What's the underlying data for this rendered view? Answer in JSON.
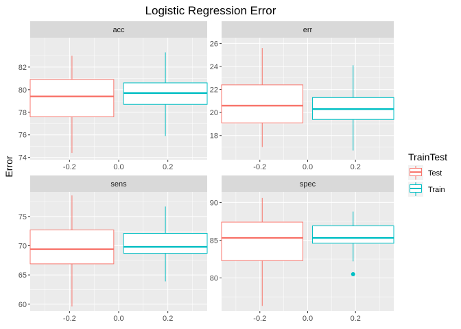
{
  "chart_data": {
    "type": "boxplot",
    "title": "Logistic Regression Error",
    "ylabel": "Error",
    "facet_layout": "2x2",
    "legend": {
      "title": "TrainTest",
      "position": "right",
      "entries": [
        {
          "name": "Test",
          "color": "#F8766D"
        },
        {
          "name": "Train",
          "color": "#00BFC4"
        }
      ]
    },
    "grid": true,
    "x_ticks": [
      "-0.2",
      "0.0",
      "0.2"
    ],
    "x_range": [
      -0.36,
      0.36
    ],
    "panels": [
      {
        "strip": "acc",
        "ylim": [
          73.8,
          84.6
        ],
        "y_ticks": [
          74,
          76,
          78,
          80,
          82
        ],
        "boxes": [
          {
            "group": "Test",
            "x": -0.19,
            "min": 74.4,
            "q1": 77.6,
            "median": 79.4,
            "q3": 80.9,
            "max": 83.0,
            "outliers": []
          },
          {
            "group": "Train",
            "x": 0.19,
            "min": 75.9,
            "q1": 78.7,
            "median": 79.7,
            "q3": 80.6,
            "max": 83.3,
            "outliers": []
          }
        ]
      },
      {
        "strip": "err",
        "ylim": [
          15.9,
          26.5
        ],
        "y_ticks": [
          18,
          20,
          22,
          24,
          26
        ],
        "boxes": [
          {
            "group": "Test",
            "x": -0.19,
            "min": 17.0,
            "q1": 19.1,
            "median": 20.6,
            "q3": 22.4,
            "max": 25.6,
            "outliers": []
          },
          {
            "group": "Train",
            "x": 0.19,
            "min": 16.7,
            "q1": 19.4,
            "median": 20.3,
            "q3": 21.3,
            "max": 24.1,
            "outliers": []
          }
        ]
      },
      {
        "strip": "sens",
        "ylim": [
          58.8,
          79.2
        ],
        "y_ticks": [
          60,
          65,
          70,
          75
        ],
        "boxes": [
          {
            "group": "Test",
            "x": -0.19,
            "min": 59.6,
            "q1": 66.9,
            "median": 69.4,
            "q3": 72.7,
            "max": 78.6,
            "outliers": []
          },
          {
            "group": "Train",
            "x": 0.19,
            "min": 63.9,
            "q1": 68.7,
            "median": 69.8,
            "q3": 72.1,
            "max": 76.7,
            "outliers": []
          }
        ]
      },
      {
        "strip": "spec",
        "ylim": [
          75.6,
          91.4
        ],
        "y_ticks": [
          80,
          85,
          90
        ],
        "boxes": [
          {
            "group": "Test",
            "x": -0.19,
            "min": 76.3,
            "q1": 82.3,
            "median": 85.3,
            "q3": 87.4,
            "max": 90.6,
            "outliers": []
          },
          {
            "group": "Train",
            "x": 0.19,
            "min": 82.2,
            "q1": 84.6,
            "median": 85.3,
            "q3": 86.9,
            "max": 88.8,
            "outliers": [
              80.5
            ]
          }
        ]
      }
    ]
  }
}
